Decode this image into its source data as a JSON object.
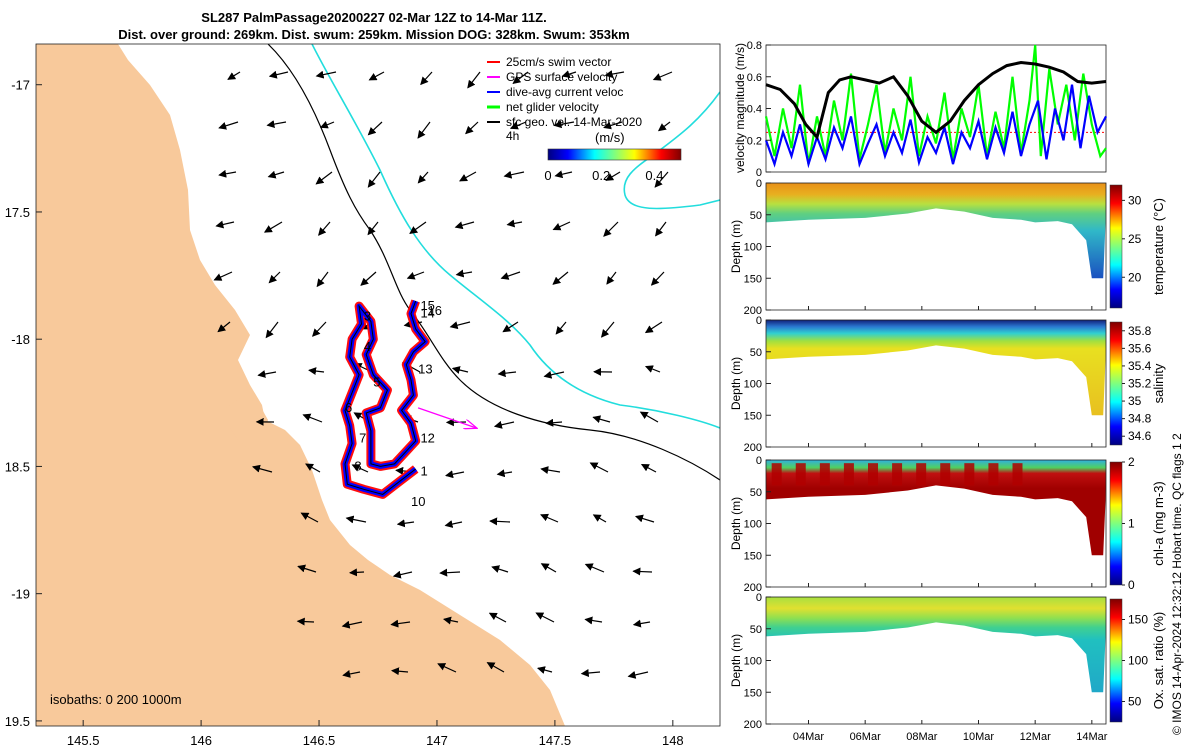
{
  "title": {
    "line1": "SL287 PalmPassage20200227 02-Mar 12Z to 14-Mar 11Z.",
    "line2": "Dist. over ground: 269km. Dist. swum: 259km. Mission DOG: 328km. Swum: 353km"
  },
  "credit": "© IMOS 14-Apr-2024 12:32:12 Hobart time. QC flags 1  2",
  "colors": {
    "land": "#f8c99b",
    "isobath_200": "#000000",
    "isobath_1000": "#22dddd",
    "swim": "#ff0000",
    "gps": "#ff00ff",
    "dive_avg": "#0000ff",
    "net_glider": "#00ff00",
    "sfc_geo": "#000000"
  },
  "chart_data": [
    {
      "type": "map",
      "name": "glider track map",
      "xlim": [
        145.3,
        148.2
      ],
      "ylim": [
        -19.52,
        -16.84
      ],
      "xticks": [
        145.5,
        146,
        146.5,
        147,
        147.5,
        148
      ],
      "xtick_labels": [
        "145.5",
        "146",
        "146.5",
        "147",
        "147.5",
        "148"
      ],
      "yticks": [
        -17,
        -17.5,
        -18,
        -18.5,
        -19,
        -19.5
      ],
      "ytick_labels": [
        "-17",
        "17.5",
        "-18",
        "18.5",
        "-19",
        "19.5"
      ],
      "legend": {
        "placement": "top-right",
        "entries": [
          {
            "label": "25cm/s swim vector",
            "color": "#ff0000"
          },
          {
            "label": "GPS surface velocity",
            "color": "#ff00ff"
          },
          {
            "label": "dive-avg current veloc",
            "color": "#0000ff"
          },
          {
            "label": "net glider velocity",
            "color": "#00ff00"
          },
          {
            "label": "sfc geo. vel. 14-Mar-2020",
            "color": "#000000"
          }
        ]
      },
      "colorbar": {
        "title": "(m/s)",
        "age_label": "4h",
        "ticks": [
          0,
          0.2,
          0.4
        ],
        "tick_labels": [
          "0",
          "0.2",
          "0.4"
        ],
        "range": [
          0,
          0.5
        ]
      },
      "isobaths_label": "isobaths: 0   200  1000m",
      "track_path": [
        [
          146.91,
          -18.51
        ],
        [
          146.84,
          -18.56
        ],
        [
          146.77,
          -18.61
        ],
        [
          146.69,
          -18.59
        ],
        [
          146.62,
          -18.57
        ],
        [
          146.61,
          -18.49
        ],
        [
          146.64,
          -18.41
        ],
        [
          146.63,
          -18.34
        ],
        [
          146.61,
          -18.28
        ],
        [
          146.64,
          -18.21
        ],
        [
          146.67,
          -18.14
        ],
        [
          146.63,
          -18.07
        ],
        [
          146.64,
          -18.0
        ],
        [
          146.68,
          -17.94
        ],
        [
          146.67,
          -17.87
        ],
        [
          146.72,
          -17.93
        ],
        [
          146.73,
          -18.0
        ],
        [
          146.7,
          -18.06
        ],
        [
          146.73,
          -18.14
        ],
        [
          146.79,
          -18.2
        ],
        [
          146.76,
          -18.27
        ],
        [
          146.7,
          -18.29
        ],
        [
          146.72,
          -18.36
        ],
        [
          146.72,
          -18.43
        ],
        [
          146.72,
          -18.49
        ],
        [
          146.76,
          -18.5
        ],
        [
          146.82,
          -18.49
        ],
        [
          146.87,
          -18.44
        ],
        [
          146.91,
          -18.4
        ],
        [
          146.89,
          -18.33
        ],
        [
          146.85,
          -18.28
        ],
        [
          146.9,
          -18.22
        ],
        [
          146.89,
          -18.16
        ],
        [
          146.87,
          -18.1
        ],
        [
          146.9,
          -18.05
        ],
        [
          146.95,
          -18.01
        ],
        [
          146.91,
          -17.96
        ],
        [
          146.89,
          -17.9
        ],
        [
          146.91,
          -17.85
        ]
      ],
      "waypoints": [
        {
          "label": "1",
          "lon": 146.93,
          "lat": -18.52
        },
        {
          "label": "3",
          "lon": 146.69,
          "lat": -17.91
        },
        {
          "label": "4",
          "lon": 146.69,
          "lat": -18.03
        },
        {
          "label": "5",
          "lon": 146.73,
          "lat": -18.17
        },
        {
          "label": "6",
          "lon": 146.61,
          "lat": -18.27
        },
        {
          "label": "7",
          "lon": 146.67,
          "lat": -18.39
        },
        {
          "label": "8",
          "lon": 146.65,
          "lat": -18.5
        },
        {
          "label": "10",
          "lon": 146.89,
          "lat": -18.64
        },
        {
          "label": "12",
          "lon": 146.93,
          "lat": -18.39
        },
        {
          "label": "13",
          "lon": 146.92,
          "lat": -18.12
        },
        {
          "label": "14",
          "lon": 146.93,
          "lat": -17.9
        },
        {
          "label": "15",
          "lon": 146.93,
          "lat": -17.87
        },
        {
          "label": "16",
          "lon": 146.96,
          "lat": -17.89
        }
      ],
      "gps_vector": {
        "from": [
          146.92,
          -18.27
        ],
        "to": [
          147.17,
          -18.35
        ]
      }
    },
    {
      "type": "line",
      "name": "velocity magnitude",
      "ylabel": "velocity magnitude (m/s)",
      "xlim": [
        2.5,
        14.5
      ],
      "ylim": [
        0,
        0.8
      ],
      "yticks": [
        0,
        0.2,
        0.4,
        0.6,
        0.8
      ],
      "ytick_labels": [
        "0",
        "0.2",
        "0.4",
        "0.6",
        "0.8"
      ],
      "swim_ref": 0.25,
      "series": [
        {
          "name": "sfc geo. speed",
          "color": "#000000",
          "x": [
            2.5,
            3.0,
            3.5,
            3.9,
            4.3,
            4.7,
            5.1,
            5.5,
            6.0,
            6.5,
            7.0,
            7.5,
            8.0,
            8.5,
            9.0,
            9.5,
            10.0,
            10.5,
            11.0,
            11.5,
            12.0,
            12.5,
            13.0,
            13.5,
            14.0,
            14.5
          ],
          "values": [
            0.55,
            0.52,
            0.43,
            0.3,
            0.22,
            0.5,
            0.58,
            0.6,
            0.58,
            0.56,
            0.6,
            0.48,
            0.32,
            0.25,
            0.32,
            0.45,
            0.55,
            0.62,
            0.67,
            0.69,
            0.68,
            0.66,
            0.63,
            0.57,
            0.56,
            0.57
          ]
        },
        {
          "name": "net glider speed",
          "color": "#00ff00",
          "x": [
            2.5,
            2.8,
            3.1,
            3.4,
            3.7,
            4.0,
            4.3,
            4.6,
            4.9,
            5.2,
            5.5,
            5.8,
            6.1,
            6.4,
            6.7,
            7.0,
            7.3,
            7.6,
            7.9,
            8.2,
            8.5,
            8.8,
            9.1,
            9.4,
            9.7,
            10.0,
            10.3,
            10.6,
            10.9,
            11.2,
            11.5,
            11.8,
            12.0,
            12.2,
            12.5,
            12.8,
            13.1,
            13.4,
            13.7,
            14.0,
            14.3,
            14.5
          ],
          "values": [
            0.35,
            0.1,
            0.4,
            0.15,
            0.55,
            0.05,
            0.35,
            0.1,
            0.45,
            0.2,
            0.62,
            0.08,
            0.3,
            0.55,
            0.12,
            0.4,
            0.2,
            0.6,
            0.1,
            0.35,
            0.18,
            0.5,
            0.08,
            0.4,
            0.22,
            0.55,
            0.1,
            0.38,
            0.15,
            0.6,
            0.12,
            0.45,
            0.8,
            0.1,
            0.65,
            0.3,
            0.55,
            0.2,
            0.62,
            0.3,
            0.1,
            0.15
          ]
        },
        {
          "name": "dive-avg current speed",
          "color": "#0000ff",
          "x": [
            2.5,
            2.8,
            3.1,
            3.4,
            3.7,
            4.0,
            4.3,
            4.6,
            4.9,
            5.2,
            5.5,
            5.8,
            6.1,
            6.4,
            6.7,
            7.0,
            7.3,
            7.6,
            7.9,
            8.2,
            8.5,
            8.8,
            9.1,
            9.4,
            9.7,
            10.0,
            10.3,
            10.6,
            10.9,
            11.2,
            11.5,
            11.8,
            12.1,
            12.4,
            12.7,
            13.0,
            13.3,
            13.6,
            13.9,
            14.2,
            14.5
          ],
          "values": [
            0.2,
            0.05,
            0.25,
            0.1,
            0.3,
            0.05,
            0.22,
            0.08,
            0.28,
            0.15,
            0.35,
            0.05,
            0.18,
            0.3,
            0.1,
            0.25,
            0.12,
            0.33,
            0.06,
            0.22,
            0.12,
            0.28,
            0.05,
            0.25,
            0.15,
            0.32,
            0.08,
            0.28,
            0.12,
            0.38,
            0.1,
            0.3,
            0.45,
            0.08,
            0.4,
            0.2,
            0.55,
            0.15,
            0.48,
            0.25,
            0.35
          ]
        }
      ]
    },
    {
      "type": "heatmap",
      "name": "temperature section",
      "ylabel": "Depth (m)",
      "colorbar_label": "temperature (°C)",
      "ylim": [
        200,
        0
      ],
      "yticks": [
        0,
        50,
        100,
        150,
        200
      ],
      "ytick_labels": [
        "0",
        "50",
        "100",
        "150",
        "200"
      ],
      "clim": [
        16,
        32
      ],
      "cticks": [
        20,
        25,
        30
      ],
      "ctick_labels": [
        "20",
        "25",
        "30"
      ]
    },
    {
      "type": "heatmap",
      "name": "salinity section",
      "ylabel": "Depth (m)",
      "colorbar_label": "salinity",
      "ylim": [
        200,
        0
      ],
      "yticks": [
        0,
        50,
        100,
        150,
        200
      ],
      "ytick_labels": [
        "0",
        "50",
        "100",
        "150",
        "200"
      ],
      "clim": [
        34.5,
        35.9
      ],
      "cticks": [
        34.6,
        34.8,
        35,
        35.2,
        35.4,
        35.6,
        35.8
      ],
      "ctick_labels": [
        "34.6",
        "34.8",
        "35",
        "35.2",
        "35.4",
        "35.6",
        "35.8"
      ]
    },
    {
      "type": "heatmap",
      "name": "chlorophyll section",
      "ylabel": "Depth (m)",
      "colorbar_label": "chl-a (mg m-3)",
      "ylim": [
        200,
        0
      ],
      "yticks": [
        0,
        50,
        100,
        150,
        200
      ],
      "ytick_labels": [
        "0",
        "50",
        "100",
        "150",
        "200"
      ],
      "clim": [
        0,
        2
      ],
      "cticks": [
        0,
        1,
        2
      ],
      "ctick_labels": [
        "0",
        "1",
        "2"
      ]
    },
    {
      "type": "heatmap",
      "name": "oxygen section",
      "ylabel": "Depth (m)",
      "colorbar_label": "Ox. sat. ratio (%)",
      "ylim": [
        200,
        0
      ],
      "yticks": [
        0,
        50,
        100,
        150,
        200
      ],
      "ytick_labels": [
        "0",
        "50",
        "100",
        "150",
        "200"
      ],
      "clim": [
        25,
        175
      ],
      "cticks": [
        50,
        100,
        150
      ],
      "ctick_labels": [
        "50",
        "100",
        "150"
      ],
      "xticks": [
        4,
        6,
        8,
        10,
        12,
        14
      ],
      "xtick_labels": [
        "04Mar",
        "06Mar",
        "08Mar",
        "10Mar",
        "12Mar",
        "14Mar"
      ]
    }
  ]
}
